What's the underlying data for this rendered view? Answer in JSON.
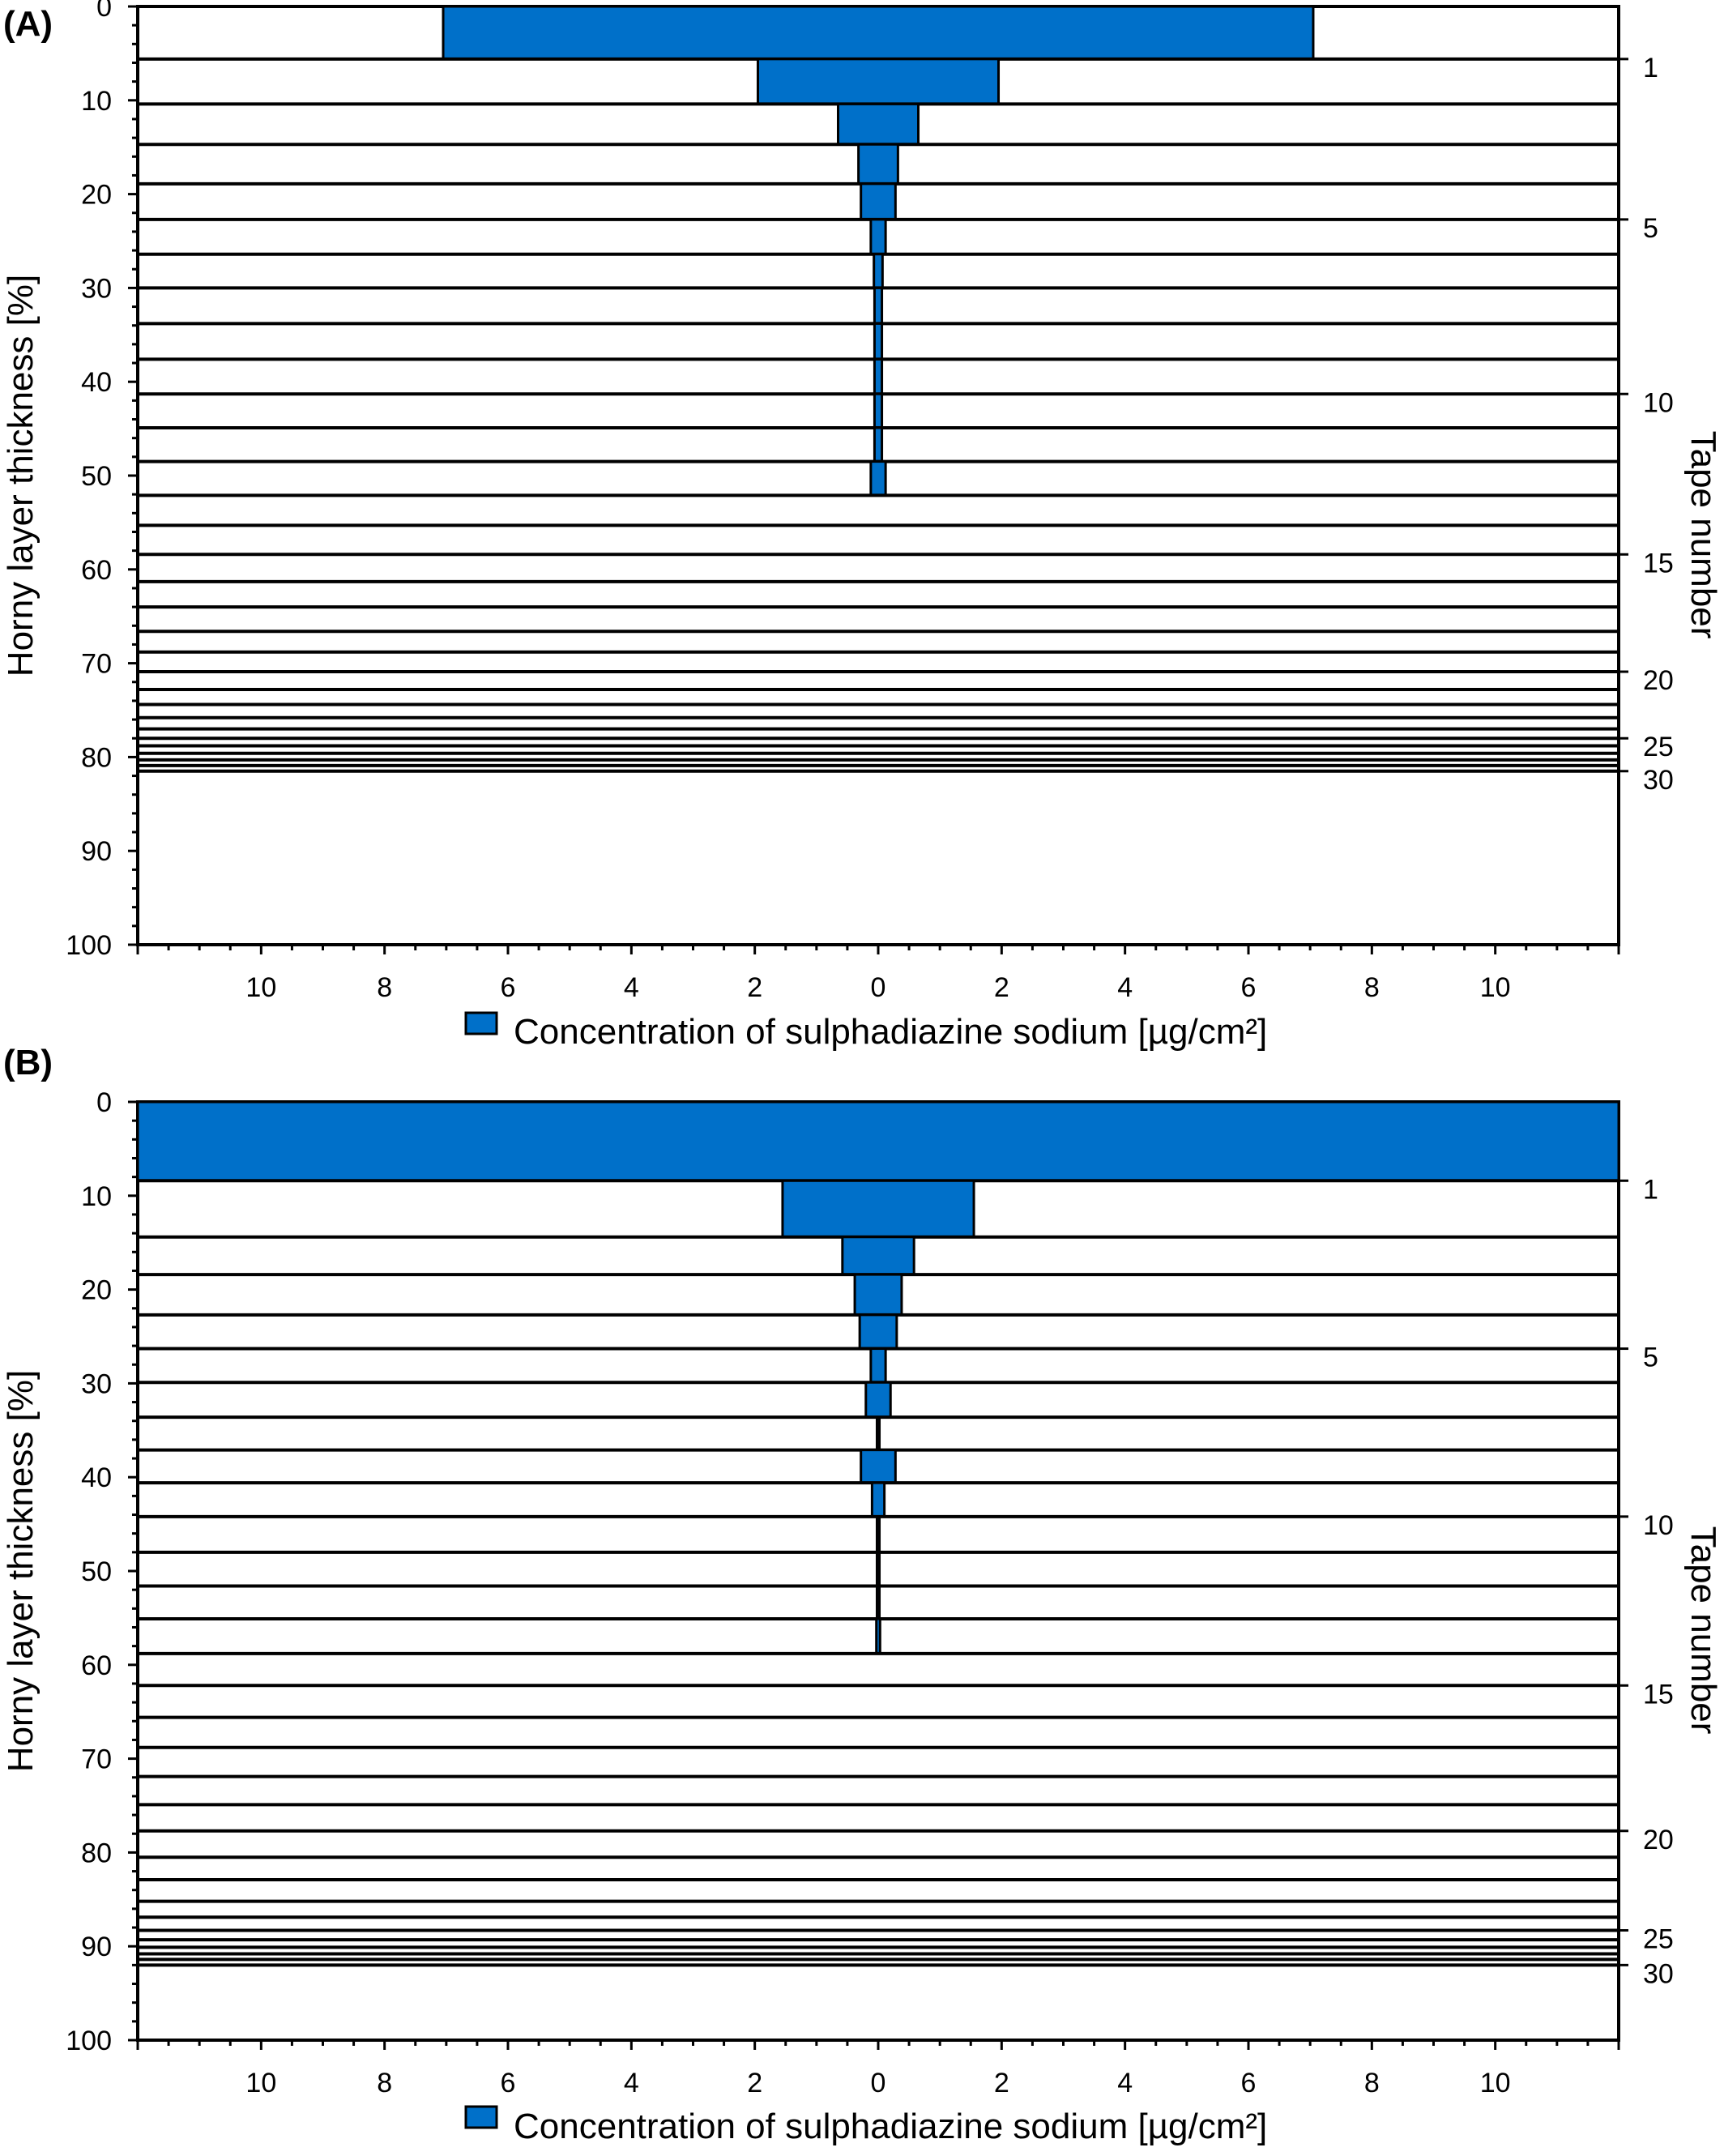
{
  "accent_color": "#0070C9",
  "chart_data": [
    {
      "type": "bar",
      "panel_label": "(A)",
      "title": "",
      "xlabel": "Concentration of sulphadiazine sodium [µg/cm²]",
      "ylabel": "Horny layer thickness [%]",
      "y2label": "Tape number",
      "xlim": [
        -12,
        12
      ],
      "ylim": [
        0,
        100
      ],
      "x_ticks": [
        10,
        8,
        6,
        4,
        2,
        0,
        2,
        4,
        6,
        8,
        10
      ],
      "y_ticks": [
        0,
        10,
        20,
        30,
        40,
        50,
        60,
        70,
        80,
        90,
        100
      ],
      "y2_ticks": [
        1,
        5,
        10,
        15,
        20,
        25,
        30
      ],
      "legend": {
        "position": "bottom",
        "label": "Concentration of sulphadiazine sodium [µg/cm²]"
      },
      "grid": false,
      "tapes": [
        {
          "tape": 1,
          "depth_from": 0.0,
          "depth_to": 5.6,
          "concentration": 7.05
        },
        {
          "tape": 2,
          "depth_from": 5.6,
          "depth_to": 10.4,
          "concentration": 1.95
        },
        {
          "tape": 3,
          "depth_from": 10.4,
          "depth_to": 14.7,
          "concentration": 0.65
        },
        {
          "tape": 4,
          "depth_from": 14.7,
          "depth_to": 18.9,
          "concentration": 0.32
        },
        {
          "tape": 5,
          "depth_from": 18.9,
          "depth_to": 22.7,
          "concentration": 0.28
        },
        {
          "tape": 6,
          "depth_from": 22.7,
          "depth_to": 26.4,
          "concentration": 0.12
        },
        {
          "tape": 7,
          "depth_from": 26.4,
          "depth_to": 30.0,
          "concentration": 0.07
        },
        {
          "tape": 8,
          "depth_from": 30.0,
          "depth_to": 33.8,
          "concentration": 0.06
        },
        {
          "tape": 9,
          "depth_from": 33.8,
          "depth_to": 37.6,
          "concentration": 0.06
        },
        {
          "tape": 10,
          "depth_from": 37.6,
          "depth_to": 41.3,
          "concentration": 0.06
        },
        {
          "tape": 11,
          "depth_from": 41.3,
          "depth_to": 44.9,
          "concentration": 0.06
        },
        {
          "tape": 12,
          "depth_from": 44.9,
          "depth_to": 48.5,
          "concentration": 0.06
        },
        {
          "tape": 13,
          "depth_from": 48.5,
          "depth_to": 52.1,
          "concentration": 0.12
        },
        {
          "tape": 14,
          "depth_from": 52.1,
          "depth_to": 55.3,
          "concentration": 0
        },
        {
          "tape": 15,
          "depth_from": 55.3,
          "depth_to": 58.4,
          "concentration": 0
        },
        {
          "tape": 16,
          "depth_from": 58.4,
          "depth_to": 61.3,
          "concentration": 0
        },
        {
          "tape": 17,
          "depth_from": 61.3,
          "depth_to": 64.0,
          "concentration": 0
        },
        {
          "tape": 18,
          "depth_from": 64.0,
          "depth_to": 66.6,
          "concentration": 0
        },
        {
          "tape": 19,
          "depth_from": 66.6,
          "depth_to": 68.8,
          "concentration": 0
        },
        {
          "tape": 20,
          "depth_from": 68.8,
          "depth_to": 70.9,
          "concentration": 0
        },
        {
          "tape": 21,
          "depth_from": 70.9,
          "depth_to": 72.8,
          "concentration": 0
        },
        {
          "tape": 22,
          "depth_from": 72.8,
          "depth_to": 74.4,
          "concentration": 0
        },
        {
          "tape": 23,
          "depth_from": 74.4,
          "depth_to": 75.8,
          "concentration": 0
        },
        {
          "tape": 24,
          "depth_from": 75.8,
          "depth_to": 77.0,
          "concentration": 0
        },
        {
          "tape": 25,
          "depth_from": 77.0,
          "depth_to": 78.0,
          "concentration": 0
        },
        {
          "tape": 26,
          "depth_from": 78.0,
          "depth_to": 78.8,
          "concentration": 0
        },
        {
          "tape": 27,
          "depth_from": 78.8,
          "depth_to": 79.6,
          "concentration": 0
        },
        {
          "tape": 28,
          "depth_from": 79.6,
          "depth_to": 80.3,
          "concentration": 0
        },
        {
          "tape": 29,
          "depth_from": 80.3,
          "depth_to": 80.9,
          "concentration": 0
        },
        {
          "tape": 30,
          "depth_from": 80.9,
          "depth_to": 81.5,
          "concentration": 0
        }
      ]
    },
    {
      "type": "bar",
      "panel_label": "(B)",
      "title": "",
      "xlabel": "Concentration of sulphadiazine sodium [µg/cm²]",
      "ylabel": "Horny layer thickness [%]",
      "y2label": "Tape number",
      "xlim": [
        -12,
        12
      ],
      "ylim": [
        0,
        100
      ],
      "x_ticks": [
        10,
        8,
        6,
        4,
        2,
        0,
        2,
        4,
        6,
        8,
        10
      ],
      "y_ticks": [
        0,
        10,
        20,
        30,
        40,
        50,
        60,
        70,
        80,
        90,
        100
      ],
      "y2_ticks": [
        1,
        5,
        10,
        15,
        20,
        25,
        30
      ],
      "legend": {
        "position": "bottom",
        "label": "Concentration of sulphadiazine sodium [µg/cm²]"
      },
      "grid": false,
      "tapes": [
        {
          "tape": 1,
          "depth_from": 0.0,
          "depth_to": 8.4,
          "concentration": 12.0
        },
        {
          "tape": 2,
          "depth_from": 8.4,
          "depth_to": 14.4,
          "concentration": 1.55
        },
        {
          "tape": 3,
          "depth_from": 14.4,
          "depth_to": 18.4,
          "concentration": 0.58
        },
        {
          "tape": 4,
          "depth_from": 18.4,
          "depth_to": 22.7,
          "concentration": 0.38
        },
        {
          "tape": 5,
          "depth_from": 22.7,
          "depth_to": 26.3,
          "concentration": 0.3
        },
        {
          "tape": 6,
          "depth_from": 26.3,
          "depth_to": 29.9,
          "concentration": 0.12
        },
        {
          "tape": 7,
          "depth_from": 29.9,
          "depth_to": 33.6,
          "concentration": 0.2
        },
        {
          "tape": 8,
          "depth_from": 33.6,
          "depth_to": 37.1,
          "concentration": 0.02
        },
        {
          "tape": 9,
          "depth_from": 37.1,
          "depth_to": 40.6,
          "concentration": 0.28
        },
        {
          "tape": 10,
          "depth_from": 40.6,
          "depth_to": 44.2,
          "concentration": 0.1
        },
        {
          "tape": 11,
          "depth_from": 44.2,
          "depth_to": 48.0,
          "concentration": 0.02
        },
        {
          "tape": 12,
          "depth_from": 48.0,
          "depth_to": 51.6,
          "concentration": 0.02
        },
        {
          "tape": 13,
          "depth_from": 51.6,
          "depth_to": 55.1,
          "concentration": 0.02
        },
        {
          "tape": 14,
          "depth_from": 55.1,
          "depth_to": 58.8,
          "concentration": 0.03
        },
        {
          "tape": 15,
          "depth_from": 58.8,
          "depth_to": 62.2,
          "concentration": 0
        },
        {
          "tape": 16,
          "depth_from": 62.2,
          "depth_to": 65.6,
          "concentration": 0
        },
        {
          "tape": 17,
          "depth_from": 65.6,
          "depth_to": 68.8,
          "concentration": 0
        },
        {
          "tape": 18,
          "depth_from": 68.8,
          "depth_to": 71.9,
          "concentration": 0
        },
        {
          "tape": 19,
          "depth_from": 71.9,
          "depth_to": 74.9,
          "concentration": 0
        },
        {
          "tape": 20,
          "depth_from": 74.9,
          "depth_to": 77.7,
          "concentration": 0
        },
        {
          "tape": 21,
          "depth_from": 77.7,
          "depth_to": 80.5,
          "concentration": 0
        },
        {
          "tape": 22,
          "depth_from": 80.5,
          "depth_to": 82.9,
          "concentration": 0
        },
        {
          "tape": 23,
          "depth_from": 82.9,
          "depth_to": 85.2,
          "concentration": 0
        },
        {
          "tape": 24,
          "depth_from": 85.2,
          "depth_to": 86.9,
          "concentration": 0
        },
        {
          "tape": 25,
          "depth_from": 86.9,
          "depth_to": 88.3,
          "concentration": 0
        },
        {
          "tape": 26,
          "depth_from": 88.3,
          "depth_to": 89.3,
          "concentration": 0
        },
        {
          "tape": 27,
          "depth_from": 89.3,
          "depth_to": 90.1,
          "concentration": 0
        },
        {
          "tape": 28,
          "depth_from": 90.1,
          "depth_to": 90.8,
          "concentration": 0
        },
        {
          "tape": 29,
          "depth_from": 90.8,
          "depth_to": 91.4,
          "concentration": 0
        },
        {
          "tape": 30,
          "depth_from": 91.4,
          "depth_to": 92.0,
          "concentration": 0
        }
      ]
    }
  ]
}
